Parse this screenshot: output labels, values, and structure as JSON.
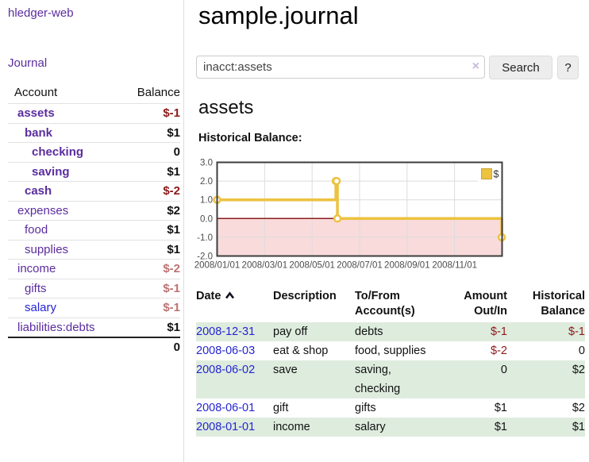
{
  "sidebar": {
    "app_title": "hledger-web",
    "journal_link": "Journal",
    "accounts": {
      "col_account": "Account",
      "col_balance": "Balance",
      "rows": [
        {
          "name": "assets",
          "balance": "$-1"
        },
        {
          "name": "bank",
          "balance": "$1"
        },
        {
          "name": "checking",
          "balance": "0"
        },
        {
          "name": "saving",
          "balance": "$1"
        },
        {
          "name": "cash",
          "balance": "$-2"
        },
        {
          "name": "expenses",
          "balance": "$2"
        },
        {
          "name": "food",
          "balance": "$1"
        },
        {
          "name": "supplies",
          "balance": "$1"
        },
        {
          "name": "income",
          "balance": "$-2"
        },
        {
          "name": "gifts",
          "balance": "$-1"
        },
        {
          "name": "salary",
          "balance": "$-1"
        },
        {
          "name": "liabilities:debts",
          "balance": "$1"
        }
      ],
      "total": "0"
    }
  },
  "main": {
    "title": "sample.journal",
    "search": {
      "value": "inacct:assets",
      "clear_icon": "×",
      "search_button": "Search",
      "help_button": "?"
    },
    "section_title": "assets",
    "chart_title": "Historical Balance:"
  },
  "chart_data": {
    "type": "line",
    "step": true,
    "title": "Historical Balance:",
    "series": [
      {
        "name": "$",
        "color": "#edc240",
        "points": [
          [
            "2008-01-01",
            1
          ],
          [
            "2008-06-01",
            2
          ],
          [
            "2008-06-02",
            2
          ],
          [
            "2008-06-03",
            0
          ],
          [
            "2008-12-31",
            -1
          ]
        ]
      }
    ],
    "x_ticks": [
      "2008/01/01",
      "2008/03/01",
      "2008/05/01",
      "2008/07/01",
      "2008/09/01",
      "2008/11/01"
    ],
    "x_tick_months": [
      0,
      2,
      4,
      6,
      8,
      10
    ],
    "x_range_months": [
      0,
      12
    ],
    "y_ticks": [
      3.0,
      2.0,
      1.0,
      0.0,
      -1.0,
      -2.0
    ],
    "ylim": [
      -2,
      3
    ],
    "grid": true,
    "legend": {
      "label": "$",
      "position": "top-right"
    },
    "negative_region_color": "#f9dbdb",
    "zero_line_color": "#8b1b1b"
  },
  "register": {
    "headers": {
      "date": "Date",
      "description": "Description",
      "account_line1": "To/From",
      "account_line2": "Account(s)",
      "amount_line1": "Amount",
      "amount_line2": "Out/In",
      "balance_line1": "Historical",
      "balance_line2": "Balance"
    },
    "rows": [
      {
        "date": "2008-12-31",
        "description": "pay off",
        "accounts": "debts",
        "amount": "$-1",
        "balance": "$-1"
      },
      {
        "date": "2008-06-03",
        "description": "eat & shop",
        "accounts": "food, supplies",
        "amount": "$-2",
        "balance": "0"
      },
      {
        "date": "2008-06-02",
        "description": "save",
        "accounts": "saving, checking",
        "amount": "0",
        "balance": "$2"
      },
      {
        "date": "2008-06-01",
        "description": "gift",
        "accounts": "gifts",
        "amount": "$1",
        "balance": "$2"
      },
      {
        "date": "2008-01-01",
        "description": "income",
        "accounts": "salary",
        "amount": "$1",
        "balance": "$1"
      }
    ]
  },
  "colors": {
    "link_purple": "#5b2d9e",
    "link_blue": "#2525d2",
    "negative_strong": "#8c1a1a",
    "negative_soft": "#bd7373",
    "row_stripe_green": "#deecde",
    "chart_line": "#edc240"
  }
}
